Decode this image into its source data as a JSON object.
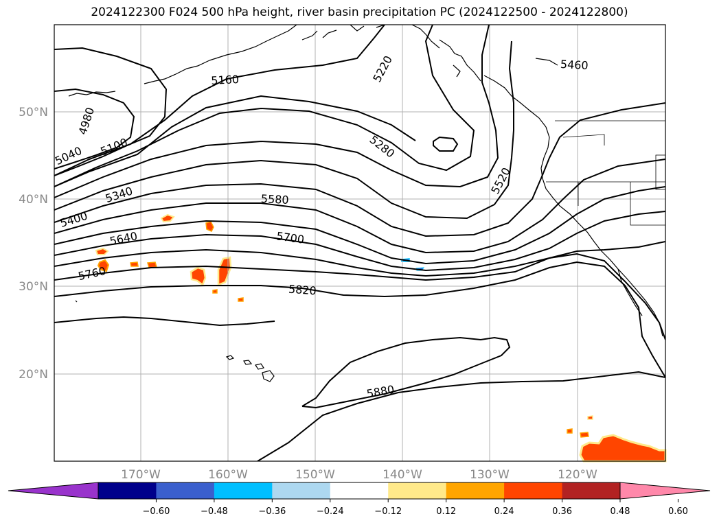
{
  "title": "2024122300 F024 500 hPa height, river basin precipitation PC (2024122500 - 2024122800)",
  "map": {
    "lon_ticks": [
      "170°W",
      "160°W",
      "150°W",
      "140°W",
      "130°W",
      "120°W"
    ],
    "lat_ticks": [
      "50°N",
      "40°N",
      "30°N",
      "20°N"
    ],
    "contour_labels": [
      {
        "text": "4980"
      },
      {
        "text": "5040"
      },
      {
        "text": "5100"
      },
      {
        "text": "5160"
      },
      {
        "text": "5220"
      },
      {
        "text": "5280"
      },
      {
        "text": "5340"
      },
      {
        "text": "5400"
      },
      {
        "text": "5460"
      },
      {
        "text": "5520"
      },
      {
        "text": "5580"
      },
      {
        "text": "5640"
      },
      {
        "text": "5700"
      },
      {
        "text": "5760"
      },
      {
        "text": "5820"
      },
      {
        "text": "5880"
      }
    ]
  },
  "colorbar": {
    "colors": [
      "#9933cc",
      "#00008b",
      "#3a5fcd",
      "#00bfff",
      "#add8f0",
      "#ffffff",
      "#ffe98a",
      "#ffa500",
      "#ff4500",
      "#b22222",
      "#ff88aa"
    ],
    "tick_labels": [
      "−0.60",
      "−0.48",
      "−0.36",
      "−0.24",
      "−0.12",
      "0.12",
      "0.24",
      "0.36",
      "0.48",
      "0.60"
    ]
  }
}
